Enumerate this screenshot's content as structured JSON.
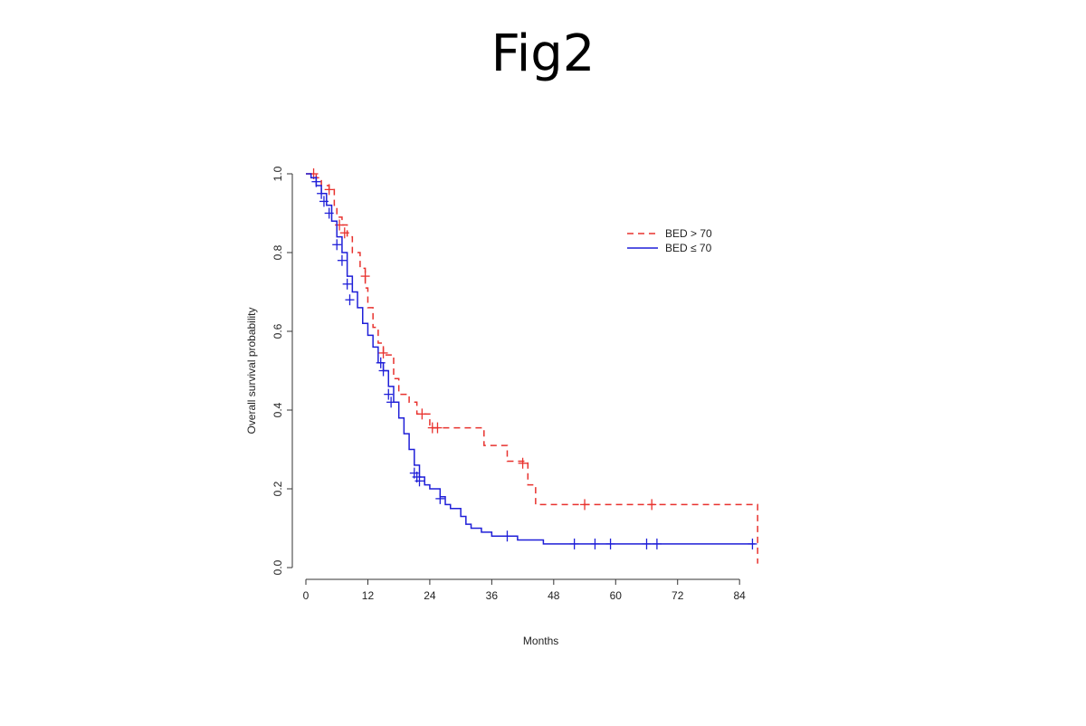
{
  "figure": {
    "title": "Fig2"
  },
  "chart_data": {
    "type": "line",
    "subtype": "kaplan-meier step curves",
    "xlabel": "Months",
    "ylabel": "Overall survival probability",
    "xlim": [
      0,
      88
    ],
    "ylim": [
      0,
      1
    ],
    "x_ticks": [
      "0",
      "12",
      "24",
      "36",
      "48",
      "60",
      "72",
      "84"
    ],
    "x_tick_values": [
      0,
      12,
      24,
      36,
      48,
      60,
      72,
      84
    ],
    "y_ticks": [
      "0.0",
      "0.2",
      "0.4",
      "0.6",
      "0.8",
      "1.0"
    ],
    "y_tick_values": [
      0,
      0.2,
      0.4,
      0.6,
      0.8,
      1.0
    ],
    "legend_position": "top-right",
    "grid": false,
    "series": [
      {
        "name": "BED > 70",
        "color": "#e8322e",
        "line_style": "dashed",
        "steps": [
          [
            0,
            1.0
          ],
          [
            2,
            0.99
          ],
          [
            3,
            0.97
          ],
          [
            4.5,
            0.96
          ],
          [
            5.5,
            0.92
          ],
          [
            6,
            0.89
          ],
          [
            7,
            0.87
          ],
          [
            8,
            0.84
          ],
          [
            9,
            0.8
          ],
          [
            10.5,
            0.76
          ],
          [
            11.5,
            0.71
          ],
          [
            12,
            0.66
          ],
          [
            13,
            0.61
          ],
          [
            14,
            0.57
          ],
          [
            15,
            0.54
          ],
          [
            17,
            0.48
          ],
          [
            18,
            0.44
          ],
          [
            20,
            0.42
          ],
          [
            21.5,
            0.39
          ],
          [
            24,
            0.355
          ],
          [
            34.5,
            0.31
          ],
          [
            39,
            0.27
          ],
          [
            43,
            0.21
          ],
          [
            44.5,
            0.16
          ],
          [
            87.5,
            0.01
          ]
        ],
        "end_x": 87.5,
        "censor": [
          [
            1.5,
            1.0
          ],
          [
            4.5,
            0.96
          ],
          [
            6.5,
            0.87
          ],
          [
            7.5,
            0.85
          ],
          [
            11.5,
            0.74
          ],
          [
            15,
            0.545
          ],
          [
            22.5,
            0.39
          ],
          [
            24.5,
            0.355
          ],
          [
            25.5,
            0.355
          ],
          [
            42,
            0.265
          ],
          [
            54,
            0.16
          ],
          [
            67,
            0.16
          ]
        ]
      },
      {
        "name": "BED ≤ 70",
        "color": "#1f1fd8",
        "line_style": "solid",
        "steps": [
          [
            0,
            1.0
          ],
          [
            1,
            0.99
          ],
          [
            2,
            0.97
          ],
          [
            3,
            0.95
          ],
          [
            4,
            0.92
          ],
          [
            5,
            0.88
          ],
          [
            6,
            0.84
          ],
          [
            7,
            0.8
          ],
          [
            8,
            0.74
          ],
          [
            9,
            0.7
          ],
          [
            10,
            0.66
          ],
          [
            11,
            0.62
          ],
          [
            12,
            0.59
          ],
          [
            13,
            0.56
          ],
          [
            14,
            0.52
          ],
          [
            15,
            0.5
          ],
          [
            16,
            0.46
          ],
          [
            17,
            0.42
          ],
          [
            18,
            0.38
          ],
          [
            19,
            0.34
          ],
          [
            20,
            0.3
          ],
          [
            21,
            0.26
          ],
          [
            22,
            0.23
          ],
          [
            23,
            0.21
          ],
          [
            24,
            0.2
          ],
          [
            26,
            0.18
          ],
          [
            27,
            0.16
          ],
          [
            28,
            0.15
          ],
          [
            30,
            0.13
          ],
          [
            31,
            0.11
          ],
          [
            32,
            0.1
          ],
          [
            34,
            0.09
          ],
          [
            36,
            0.08
          ],
          [
            41,
            0.07
          ],
          [
            46,
            0.06
          ]
        ],
        "end_x": 87,
        "censor": [
          [
            2,
            0.98
          ],
          [
            3,
            0.95
          ],
          [
            3.5,
            0.93
          ],
          [
            4.5,
            0.9
          ],
          [
            6,
            0.82
          ],
          [
            7,
            0.78
          ],
          [
            8,
            0.72
          ],
          [
            8.5,
            0.68
          ],
          [
            14.5,
            0.52
          ],
          [
            15,
            0.5
          ],
          [
            16,
            0.44
          ],
          [
            16.5,
            0.42
          ],
          [
            21,
            0.24
          ],
          [
            21.5,
            0.23
          ],
          [
            22,
            0.22
          ],
          [
            26,
            0.175
          ],
          [
            39,
            0.08
          ],
          [
            52,
            0.06
          ],
          [
            56,
            0.06
          ],
          [
            59,
            0.06
          ],
          [
            66,
            0.06
          ],
          [
            68,
            0.06
          ],
          [
            86.5,
            0.06
          ]
        ]
      }
    ]
  }
}
